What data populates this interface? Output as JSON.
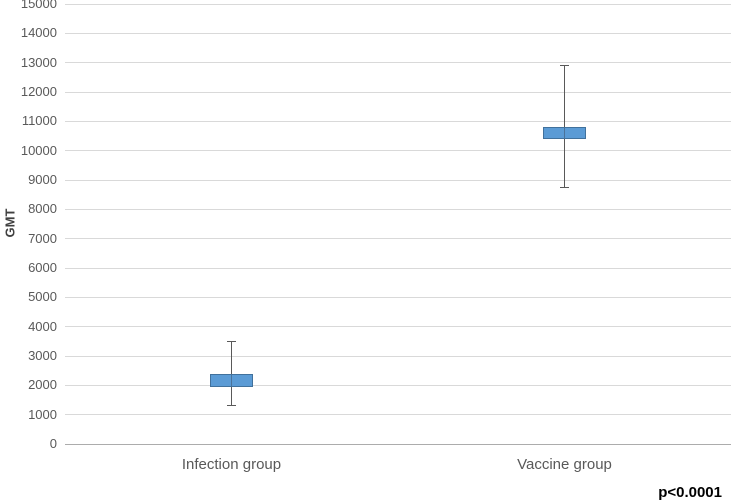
{
  "chart_data": {
    "type": "boxplot",
    "title": "",
    "ylabel": "GMT",
    "xlabel": "",
    "ylim": [
      0,
      15000
    ],
    "ytick_step": 1000,
    "grid": true,
    "legend": "none",
    "categories": [
      "Infection group",
      "Vaccine group"
    ],
    "series": [
      {
        "name": "Infection group",
        "whisker_low": 1330,
        "box_low": 1950,
        "box_high": 2400,
        "whisker_high": 3500
      },
      {
        "name": "Vaccine group",
        "whisker_low": 8760,
        "box_low": 10400,
        "box_high": 10800,
        "whisker_high": 12930
      }
    ],
    "annotation": "p<0.0001",
    "colors": {
      "box_fill": "#5B9BD5",
      "box_border": "#41719C",
      "whisker": "#595959",
      "gridline": "#D9D9D9",
      "axis_line": "#ACACAC",
      "tick_text": "#595959",
      "category_text": "#595959",
      "ylabel_text": "#404040",
      "annotation_text": "#000000"
    }
  }
}
